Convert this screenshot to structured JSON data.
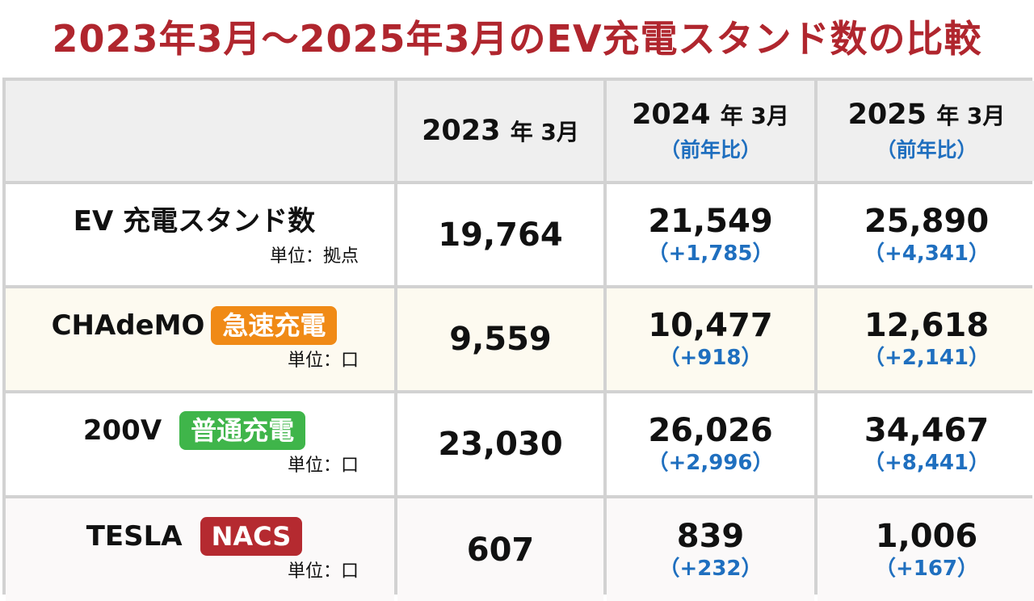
{
  "title": "2023年3月〜2025年3月のEV充電スタンド数の比較",
  "colors": {
    "title": "#b0262e",
    "diff": "#1f6fbf",
    "badge_quick": "#f08a16",
    "badge_normal": "#3fb54a",
    "badge_nacs": "#b52a30"
  },
  "header": {
    "col1": {
      "year": "2023",
      "year_suffix": "年 3月"
    },
    "col2": {
      "year": "2024",
      "year_suffix": "年 3月",
      "sub": "（前年比）"
    },
    "col3": {
      "year": "2025",
      "year_suffix": "年 3月",
      "sub": "（前年比）"
    }
  },
  "rows": [
    {
      "label": "EV 充電スタンド数",
      "badge": "",
      "unit": "単位：拠点",
      "v2023": "19,764",
      "v2024": "21,549",
      "d2024": "（+1,785）",
      "v2025": "25,890",
      "d2025": "（+4,341）"
    },
    {
      "label": "CHAdeMO",
      "badge": "急速充電",
      "unit": "単位：口",
      "v2023": "9,559",
      "v2024": "10,477",
      "d2024": "（+918）",
      "v2025": "12,618",
      "d2025": "（+2,141）"
    },
    {
      "label": "200V",
      "badge": "普通充電",
      "unit": "単位：口",
      "v2023": "23,030",
      "v2024": "26,026",
      "d2024": "（+2,996）",
      "v2025": "34,467",
      "d2025": "（+8,441）"
    },
    {
      "label": "TESLA",
      "badge": "NACS",
      "unit": "単位：口",
      "v2023": "607",
      "v2024": "839",
      "d2024": "（+232）",
      "v2025": "1,006",
      "d2025": "（+167）"
    }
  ]
}
